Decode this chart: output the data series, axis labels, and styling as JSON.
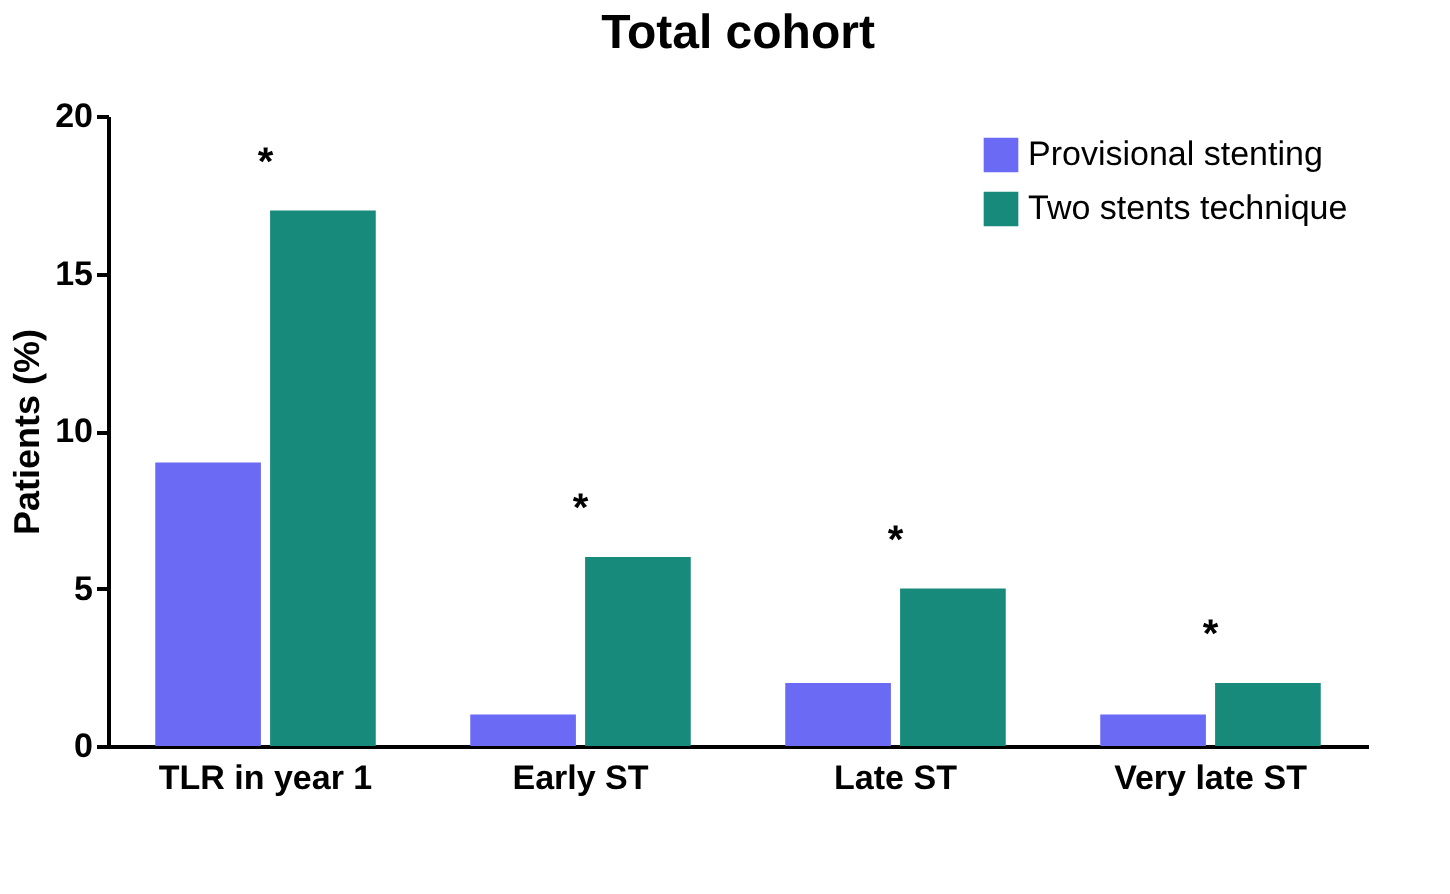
{
  "chart_data": {
    "type": "bar",
    "title": "Total cohort",
    "ylabel": "Patients (%)",
    "categories": [
      "TLR in year 1",
      "Early ST",
      "Late ST",
      "Very late ST"
    ],
    "series": [
      {
        "name": "Provisional stenting",
        "color": "#6a6af5",
        "values": [
          9,
          1,
          2,
          1
        ]
      },
      {
        "name": "Two stents technique",
        "color": "#178a7c",
        "values": [
          17,
          6,
          5,
          2
        ]
      }
    ],
    "ylim": [
      0,
      20
    ],
    "yticks": [
      0,
      5,
      10,
      15,
      20
    ],
    "grid": false,
    "legend": "top right",
    "annotations": [
      "*",
      "*",
      "*",
      "*"
    ]
  }
}
